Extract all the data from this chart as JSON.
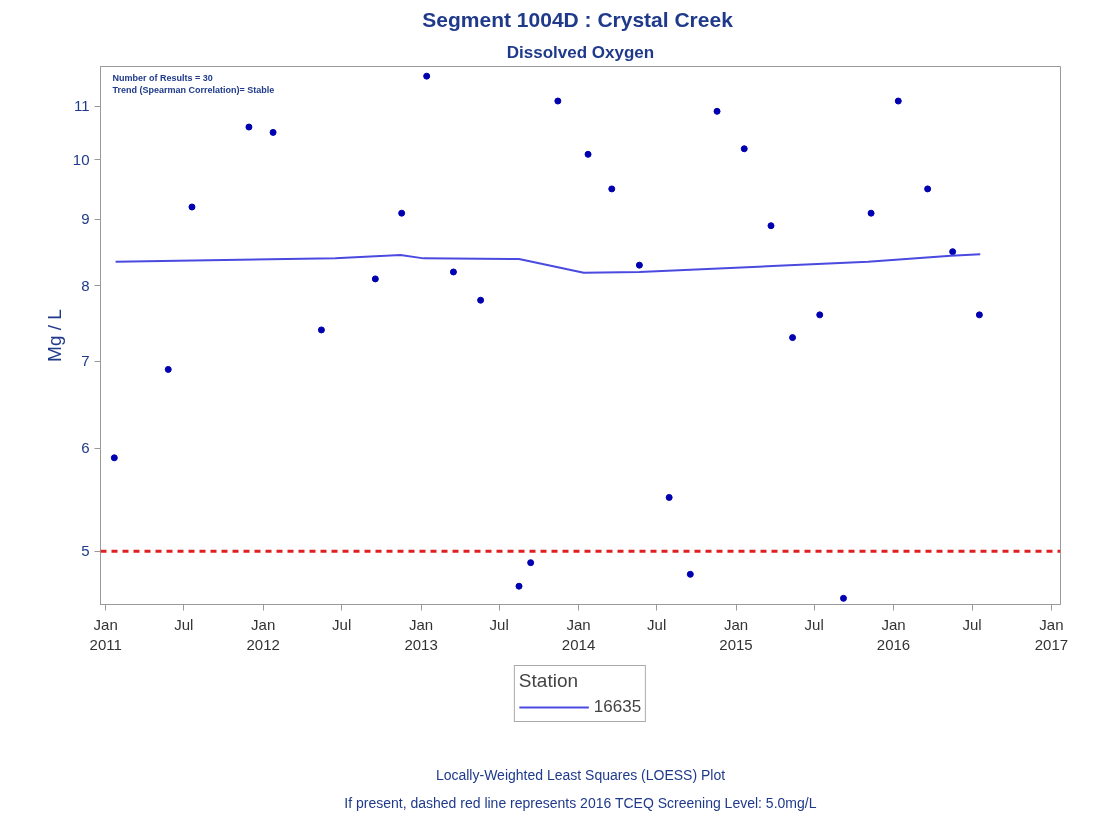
{
  "chart_data": {
    "type": "scatter",
    "title": "Segment 1004D :  Crystal Creek",
    "subtitle": "Dissolved Oxygen",
    "ylabel": "Mg / L",
    "legend_title": "Station",
    "annotations": [
      "Number of Results = 30",
      "Trend (Spearman Correlation)= Stable",
      "Locally-Weighted Least Squares (LOESS) Plot",
      "If present, dashed red line represents 2016 TCEQ Screening Level: 5.0mg/L"
    ],
    "series": [
      {
        "marker": "circle",
        "color": "#0000b0",
        "x": [
          "2011-01-21",
          "2011-05-26",
          "2011-07-20",
          "2011-11-29",
          "2012-01-24",
          "2012-05-15",
          "2012-09-17",
          "2012-11-17",
          "2013-01-14",
          "2013-03-17",
          "2013-05-19",
          "2013-08-16",
          "2013-09-12",
          "2013-11-14",
          "2014-01-23",
          "2014-03-19",
          "2014-05-22",
          "2014-07-30",
          "2014-09-17",
          "2014-11-18",
          "2015-01-20",
          "2015-03-23",
          "2015-05-12",
          "2015-07-14",
          "2015-09-07",
          "2015-11-10",
          "2016-01-12",
          "2016-03-20",
          "2016-05-17",
          "2016-07-18"
        ],
        "values": [
          5.9,
          6.9,
          9.2,
          10.6,
          10.5,
          7.4,
          8.1,
          9.1,
          11.6,
          8.2,
          7.8,
          4.7,
          4.9,
          11.1,
          10.1,
          9.5,
          8.3,
          5.5,
          4.8,
          10.9,
          10.2,
          8.9,
          7.3,
          7.6,
          4.6,
          9.1,
          11.1,
          9.5,
          8.5,
          7.6
        ]
      },
      {
        "type": "line",
        "marker": "none",
        "name": "16635",
        "color": "#4a4ae0",
        "x": [
          "2011-01-24",
          "2012-06-16",
          "2012-11-14",
          "2013-01-07",
          "2013-08-16",
          "2014-01-13",
          "2014-05-22",
          "2015-04-08",
          "2015-11-03",
          "2016-05-13",
          "2016-07-20"
        ],
        "values": [
          8.35,
          8.4,
          8.45,
          8.4,
          8.39,
          8.19,
          8.2,
          8.29,
          8.35,
          8.44,
          8.46
        ]
      }
    ],
    "xlim": [
      "2010-12-20",
      "2017-01-22"
    ],
    "xticks": [
      {
        "value": "2011-01-01",
        "label": "Jan\n2011"
      },
      {
        "value": "2011-07-01",
        "label": "Jul"
      },
      {
        "value": "2012-01-01",
        "label": "Jan\n2012"
      },
      {
        "value": "2012-07-01",
        "label": "Jul"
      },
      {
        "value": "2013-01-01",
        "label": "Jan\n2013"
      },
      {
        "value": "2013-07-01",
        "label": "Jul"
      },
      {
        "value": "2014-01-01",
        "label": "Jan\n2014"
      },
      {
        "value": "2014-07-01",
        "label": "Jul"
      },
      {
        "value": "2015-01-01",
        "label": "Jan\n2015"
      },
      {
        "value": "2015-07-01",
        "label": "Jul"
      },
      {
        "value": "2016-01-01",
        "label": "Jan\n2016"
      },
      {
        "value": "2016-07-01",
        "label": "Jul"
      },
      {
        "value": "2017-01-01",
        "label": "Jan\n2017"
      }
    ],
    "ylim": [
      4.55,
      11.8
    ],
    "yticks": [
      5,
      6,
      7,
      8,
      9,
      10,
      11
    ],
    "log": "y",
    "grid": false,
    "legend": "bottom",
    "ref_lines": [
      {
        "axis": "y",
        "value": 5,
        "color": "#e02020",
        "line_style": "dashed"
      }
    ]
  }
}
